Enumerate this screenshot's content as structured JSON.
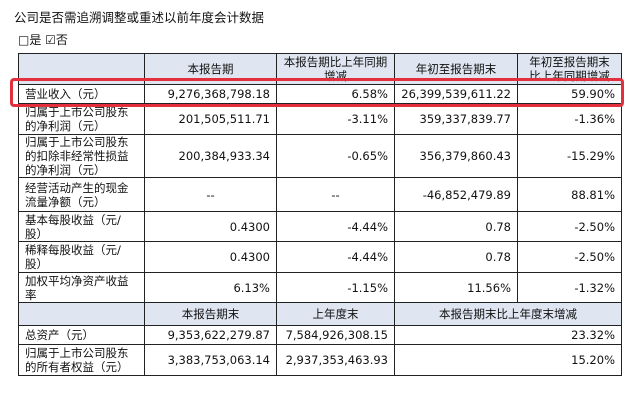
{
  "title": "公司是否需追溯调整或重述以前年度会计数据",
  "options": {
    "yes": "□是",
    "no": "☑否"
  },
  "header1": [
    "",
    "本报告期",
    "本报告期比上年同期增减",
    "年初至报告期末",
    "年初至报告期末比上年同期增减"
  ],
  "rows": [
    {
      "label": "营业收入（元）",
      "c1": "9,276,368,798.18",
      "c2": "6.58%",
      "c3": "26,399,539,611.22",
      "c4": "59.90%"
    },
    {
      "label": "归属于上市公司股东的净利润（元）",
      "c1": "201,505,511.71",
      "c2": "-3.11%",
      "c3": "359,337,839.77",
      "c4": "-1.36%"
    },
    {
      "label": "归属于上市公司股东的扣除非经常性损益的净利润（元）",
      "c1": "200,384,933.34",
      "c2": "-0.65%",
      "c3": "356,379,860.43",
      "c4": "-15.29%"
    },
    {
      "label": "经营活动产生的现金流量净额（元）",
      "c1": "--",
      "c2": "--",
      "c3": "-46,852,479.89",
      "c4": "88.81%"
    },
    {
      "label": "基本每股收益（元/股）",
      "c1": "0.4300",
      "c2": "-4.44%",
      "c3": "0.78",
      "c4": "-2.50%"
    },
    {
      "label": "稀释每股收益（元/股）",
      "c1": "0.4300",
      "c2": "-4.44%",
      "c3": "0.78",
      "c4": "-2.50%"
    },
    {
      "label": "加权平均净资产收益率",
      "c1": "6.13%",
      "c2": "-1.15%",
      "c3": "11.56%",
      "c4": "-1.32%"
    }
  ],
  "header2": [
    "",
    "本报告期末",
    "上年度末",
    "本报告期末比上年度末增减"
  ],
  "rows2": [
    {
      "label": "总资产（元）",
      "c1": "9,353,622,279.87",
      "c2": "7,584,926,308.15",
      "c3": "23.32%"
    },
    {
      "label": "归属于上市公司股东的所有者权益（元）",
      "c1": "3,383,753,063.14",
      "c2": "2,937,353,463.93",
      "c3": "15.20%"
    }
  ],
  "highlight_color": "#e4303c",
  "header_bg": "#dfe6f1"
}
